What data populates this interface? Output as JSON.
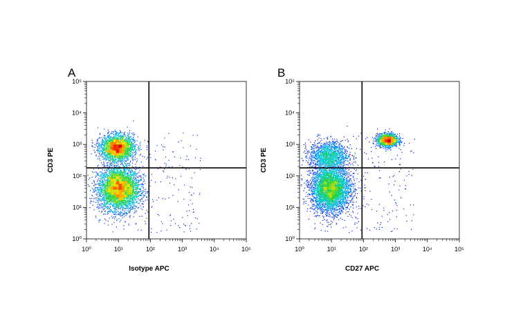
{
  "chart_data": [
    {
      "type": "scatter",
      "panel_label": "A",
      "title": "",
      "xlabel": "Isotype APC",
      "ylabel": "CD3 PE",
      "xscale": "log",
      "yscale": "log",
      "xlim": [
        1,
        100000
      ],
      "ylim": [
        1,
        100000
      ],
      "x_tick_labels": [
        "10⁰",
        "10¹",
        "10²",
        "10³",
        "10⁴",
        "10⁵"
      ],
      "y_tick_labels": [
        "10⁰",
        "10¹",
        "10²",
        "10³",
        "10⁴",
        "10⁵"
      ],
      "quadrant_gate": {
        "x": 90,
        "y": 180
      },
      "grid": false,
      "colormap": "density (blue → green → yellow → red)",
      "populations": [
        {
          "x_center": 10,
          "y_center": 40,
          "density": "highest"
        },
        {
          "x_center": 9,
          "y_center": 800,
          "density": "high"
        }
      ]
    },
    {
      "type": "scatter",
      "panel_label": "B",
      "title": "",
      "xlabel": "CD27 APC",
      "ylabel": "CD3 PE",
      "xscale": "log",
      "yscale": "log",
      "xlim": [
        1,
        100000
      ],
      "ylim": [
        1,
        100000
      ],
      "x_tick_labels": [
        "10⁰",
        "10¹",
        "10²",
        "10³",
        "10⁴",
        "10⁵"
      ],
      "y_tick_labels": [
        "10⁰",
        "10¹",
        "10²",
        "10³",
        "10⁴",
        "10⁵"
      ],
      "quadrant_gate": {
        "x": 90,
        "y": 180
      },
      "grid": false,
      "colormap": "density (blue → green → yellow → red)",
      "populations": [
        {
          "x_center": 9,
          "y_center": 40,
          "density": "highest"
        },
        {
          "x_center": 8,
          "y_center": 450,
          "density": "medium"
        },
        {
          "x_center": 550,
          "y_center": 1400,
          "density": "high"
        }
      ]
    }
  ]
}
